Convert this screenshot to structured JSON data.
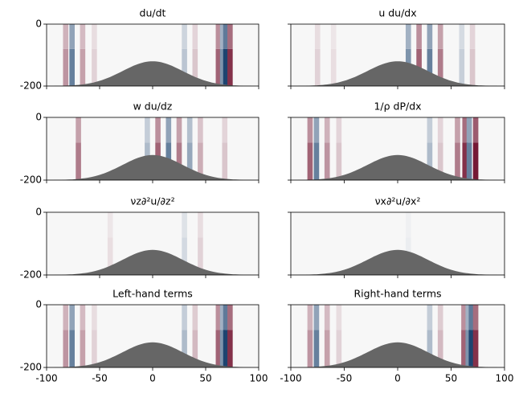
{
  "chart_data": [
    {
      "type": "heatmap",
      "title": "du/dt",
      "x": [
        -82,
        -76,
        -66,
        -55,
        30,
        40,
        62,
        66,
        69,
        73
      ],
      "values": [
        0.4,
        -0.6,
        0.35,
        0.15,
        -0.25,
        0.2,
        0.6,
        -0.5,
        -0.9,
        0.8
      ],
      "xlim": [
        -100,
        100
      ],
      "ylim": [
        -200,
        0
      ],
      "xticks": [
        -100,
        -50,
        0,
        50,
        100
      ],
      "yticks": [
        0,
        -200
      ]
    },
    {
      "type": "heatmap",
      "title": "u du/dx",
      "x": [
        -75,
        -60,
        10,
        20,
        30,
        40,
        60,
        70
      ],
      "values": [
        0.15,
        0.1,
        -0.5,
        0.6,
        -0.6,
        0.5,
        -0.2,
        0.2
      ],
      "xlim": [
        -100,
        100
      ],
      "ylim": [
        -200,
        0
      ],
      "xticks": [
        -100,
        -50,
        0,
        50,
        100
      ],
      "yticks": [
        0,
        -200
      ]
    },
    {
      "type": "heatmap",
      "title": "w du/dz",
      "x": [
        -70,
        -5,
        5,
        15,
        25,
        35,
        45,
        68
      ],
      "values": [
        0.5,
        -0.3,
        0.6,
        -0.6,
        0.5,
        -0.4,
        0.3,
        0.2
      ],
      "xlim": [
        -100,
        100
      ],
      "ylim": [
        -200,
        0
      ],
      "xticks": [
        -100,
        -50,
        0,
        50,
        100
      ],
      "yticks": [
        0,
        -200
      ]
    },
    {
      "type": "heatmap",
      "title": "1/ρ dP/dx",
      "x": [
        -82,
        -76,
        -66,
        -55,
        30,
        40,
        56,
        63,
        67,
        73
      ],
      "values": [
        0.6,
        -0.6,
        0.4,
        0.2,
        -0.3,
        0.2,
        0.5,
        0.8,
        -0.6,
        0.9
      ],
      "xlim": [
        -100,
        100
      ],
      "ylim": [
        -200,
        0
      ],
      "xticks": [
        -100,
        -50,
        0,
        50,
        100
      ],
      "yticks": [
        0,
        -200
      ]
    },
    {
      "type": "heatmap",
      "title": "νz∂²u/∂z²",
      "x": [
        -40,
        30,
        45
      ],
      "values": [
        0.1,
        -0.15,
        0.15
      ],
      "xlim": [
        -100,
        100
      ],
      "ylim": [
        -200,
        0
      ],
      "xticks": [
        -100,
        -50,
        0,
        50,
        100
      ],
      "yticks": [
        0,
        -200
      ]
    },
    {
      "type": "heatmap",
      "title": "νx∂²u/∂x²",
      "x": [
        10
      ],
      "values": [
        -0.05
      ],
      "xlim": [
        -100,
        100
      ],
      "ylim": [
        -200,
        0
      ],
      "xticks": [
        -100,
        -50,
        0,
        50,
        100
      ],
      "yticks": [
        0,
        -200
      ]
    },
    {
      "type": "heatmap",
      "title": "Left-hand terms",
      "x": [
        -82,
        -76,
        -66,
        -55,
        30,
        40,
        62,
        66,
        69,
        73
      ],
      "values": [
        0.4,
        -0.6,
        0.35,
        0.15,
        -0.3,
        0.25,
        0.6,
        -0.5,
        -0.9,
        0.8
      ],
      "xlim": [
        -100,
        100
      ],
      "ylim": [
        -200,
        0
      ],
      "xticks": [
        -100,
        -50,
        0,
        50,
        100
      ],
      "yticks": [
        0,
        -200
      ]
    },
    {
      "type": "heatmap",
      "title": "Right-hand terms",
      "x": [
        -82,
        -76,
        -66,
        -55,
        30,
        40,
        62,
        66,
        69,
        73
      ],
      "values": [
        0.4,
        -0.6,
        0.35,
        0.15,
        -0.3,
        0.25,
        0.6,
        -0.5,
        -0.9,
        0.8
      ],
      "xlim": [
        -100,
        100
      ],
      "ylim": [
        -200,
        0
      ],
      "xticks": [
        -100,
        -50,
        0,
        50,
        100
      ],
      "yticks": [
        0,
        -200
      ]
    }
  ]
}
